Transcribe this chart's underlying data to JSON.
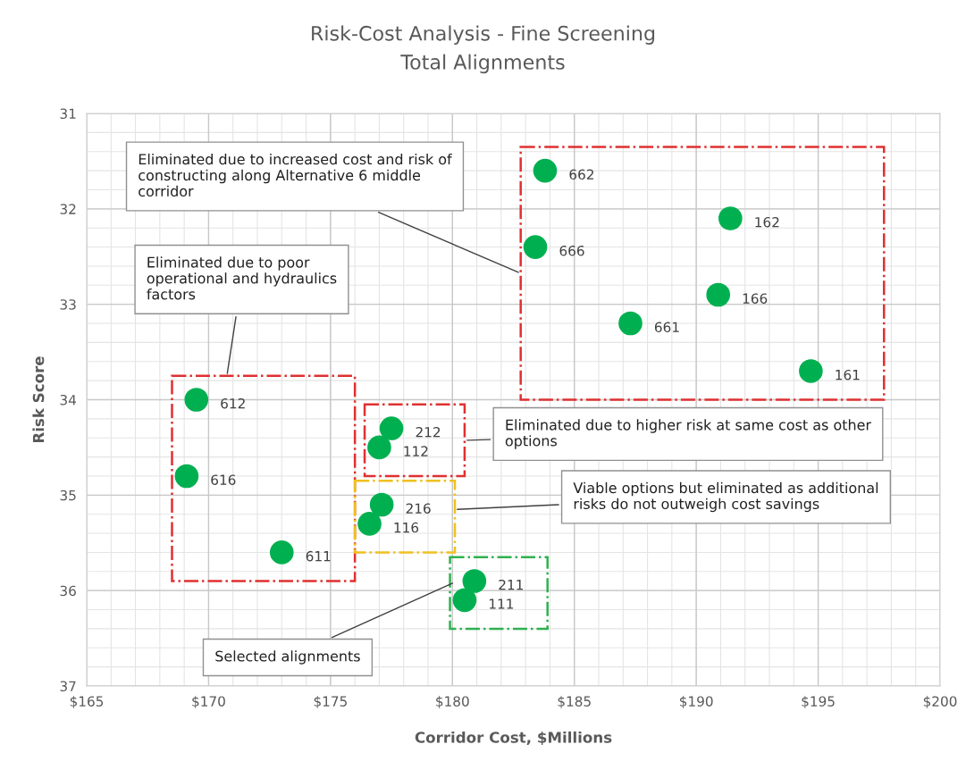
{
  "chart_data": {
    "type": "scatter",
    "title": "Risk-Cost Analysis - Fine Screening",
    "subtitle": "Total Alignments",
    "xlabel": "Corridor Cost, $Millions",
    "ylabel": "Risk Score",
    "xlim": [
      165,
      200
    ],
    "xticks": [
      {
        "value": 165,
        "label": "$165"
      },
      {
        "value": 170,
        "label": "$170"
      },
      {
        "value": 175,
        "label": "$175"
      },
      {
        "value": 180,
        "label": "$180"
      },
      {
        "value": 185,
        "label": "$185"
      },
      {
        "value": 190,
        "label": "$190"
      },
      {
        "value": 195,
        "label": "$195"
      },
      {
        "value": 200,
        "label": "$200"
      }
    ],
    "ylim": [
      37,
      31
    ],
    "yticks": [
      31,
      32,
      33,
      34,
      35,
      36,
      37
    ],
    "grid": true,
    "series": [
      {
        "color": "#00b050",
        "x": [
          183.8,
          191.4,
          183.4,
          190.9,
          187.3,
          194.7
        ],
        "values": [
          31.6,
          32.1,
          32.4,
          32.9,
          33.2,
          33.7
        ]
      },
      {
        "color": "#00b050",
        "x": [
          169.5,
          169.1,
          173.0
        ],
        "values": [
          34.0,
          34.8,
          35.6
        ]
      },
      {
        "color": "#00b050",
        "x": [
          177.5,
          177.0
        ],
        "values": [
          34.3,
          34.5
        ]
      },
      {
        "color": "#00b050",
        "x": [
          177.1,
          176.6
        ],
        "values": [
          35.1,
          35.3
        ]
      },
      {
        "color": "#00b050",
        "x": [
          180.9,
          180.5
        ],
        "values": [
          35.9,
          36.1
        ]
      }
    ],
    "annotations": [
      "Eliminated due to increased cost and risk of constructing along Alternative 6 middle corridor",
      "Eliminated due to poor operational and hydraulics factors",
      "Eliminated due to higher risk at same cost as other options",
      "Viable options but eliminated as additional risks do not outweigh cost savings",
      "Selected alignments",
      {
        "text": "662",
        "x": 183.8,
        "y": 31.6
      },
      {
        "text": "162",
        "x": 191.4,
        "y": 32.1
      },
      {
        "text": "666",
        "x": 183.4,
        "y": 32.4
      },
      {
        "text": "166",
        "x": 190.9,
        "y": 32.9
      },
      {
        "text": "661",
        "x": 187.3,
        "y": 33.2
      },
      {
        "text": "161",
        "x": 194.7,
        "y": 33.7
      },
      {
        "text": "612",
        "x": 169.5,
        "y": 34.0
      },
      {
        "text": "616",
        "x": 169.1,
        "y": 34.8
      },
      {
        "text": "611",
        "x": 173.0,
        "y": 35.6
      },
      {
        "text": "212",
        "x": 177.5,
        "y": 34.3
      },
      {
        "text": "112",
        "x": 177.0,
        "y": 34.5
      },
      {
        "text": "216",
        "x": 177.1,
        "y": 35.1
      },
      {
        "text": "116",
        "x": 176.6,
        "y": 35.3
      },
      {
        "text": "211",
        "x": 180.9,
        "y": 35.9
      },
      {
        "text": "111",
        "x": 180.5,
        "y": 36.1
      }
    ]
  }
}
